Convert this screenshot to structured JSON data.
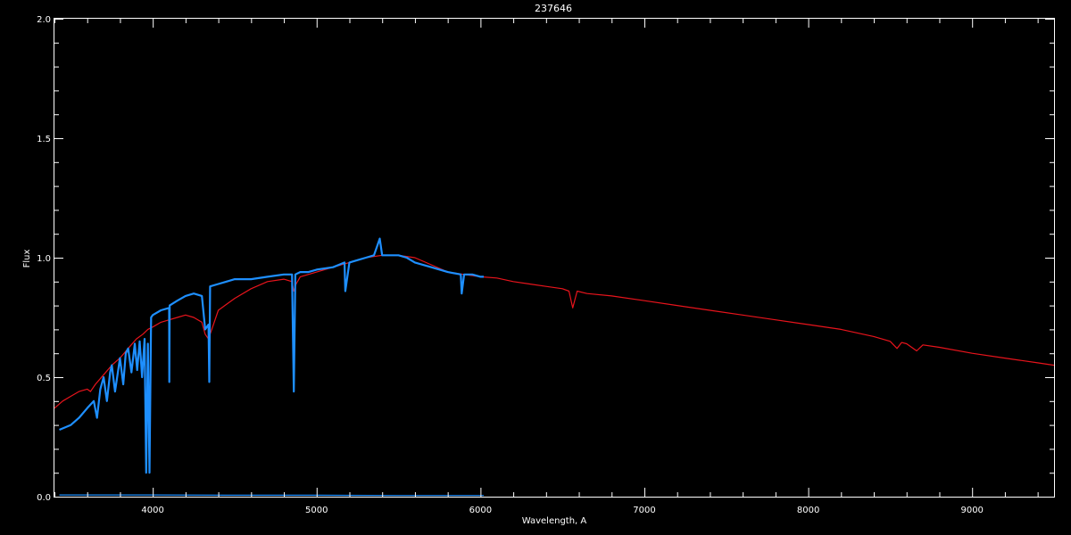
{
  "chart_data": {
    "type": "line",
    "title": "237646",
    "xlabel": "Wavelength, A",
    "ylabel": "Flux",
    "xlim": [
      3400,
      9500
    ],
    "ylim": [
      0.0,
      2.0
    ],
    "x_major_ticks": [
      4000,
      5000,
      6000,
      7000,
      8000,
      9000
    ],
    "x_minor_step": 200,
    "y_major_ticks": [
      0.0,
      0.5,
      1.0,
      1.5,
      2.0
    ],
    "y_tick_labels": [
      "0.0",
      "0.5",
      "1.0",
      "1.5",
      "2.0"
    ],
    "y_minor_step": 0.1,
    "grid": false,
    "background": "#000000",
    "axis_color": "#ffffff",
    "series": [
      {
        "color": "#e8141c",
        "x": [
          3400,
          3450,
          3500,
          3550,
          3600,
          3620,
          3650,
          3700,
          3750,
          3800,
          3850,
          3900,
          3940,
          3970,
          4000,
          4050,
          4100,
          4150,
          4200,
          4250,
          4300,
          4320,
          4340,
          4360,
          4400,
          4500,
          4600,
          4700,
          4800,
          4850,
          4861,
          4875,
          4900,
          5000,
          5100,
          5200,
          5300,
          5400,
          5500,
          5600,
          5700,
          5800,
          5900,
          6000,
          6100,
          6200,
          6300,
          6400,
          6500,
          6540,
          6563,
          6590,
          6650,
          6800,
          7000,
          7200,
          7400,
          7600,
          7800,
          8000,
          8200,
          8400,
          8500,
          8542,
          8570,
          8600,
          8662,
          8700,
          8800,
          9000,
          9200,
          9400,
          9500
        ],
        "y": [
          0.37,
          0.4,
          0.42,
          0.44,
          0.45,
          0.44,
          0.47,
          0.51,
          0.55,
          0.58,
          0.62,
          0.66,
          0.68,
          0.7,
          0.71,
          0.73,
          0.74,
          0.75,
          0.76,
          0.75,
          0.73,
          0.68,
          0.66,
          0.7,
          0.78,
          0.83,
          0.87,
          0.9,
          0.91,
          0.9,
          0.86,
          0.89,
          0.92,
          0.94,
          0.96,
          0.98,
          1.0,
          1.01,
          1.01,
          1.0,
          0.97,
          0.94,
          0.93,
          0.92,
          0.915,
          0.9,
          0.89,
          0.88,
          0.87,
          0.86,
          0.79,
          0.86,
          0.85,
          0.84,
          0.82,
          0.8,
          0.78,
          0.76,
          0.74,
          0.72,
          0.7,
          0.67,
          0.65,
          0.62,
          0.645,
          0.64,
          0.61,
          0.635,
          0.625,
          0.6,
          0.58,
          0.56,
          0.55
        ]
      },
      {
        "color": "#1e8fff",
        "x": [
          3430,
          3500,
          3550,
          3600,
          3640,
          3660,
          3680,
          3700,
          3720,
          3740,
          3750,
          3770,
          3800,
          3820,
          3835,
          3850,
          3870,
          3890,
          3905,
          3920,
          3935,
          3950,
          3960,
          3970,
          3980,
          3990,
          4000,
          4050,
          4100,
          4101,
          4103,
          4150,
          4200,
          4250,
          4300,
          4320,
          4340,
          4345,
          4350,
          4400,
          4450,
          4500,
          4600,
          4700,
          4800,
          4850,
          4861,
          4870,
          4900,
          4950,
          5000,
          5100,
          5170,
          5175,
          5200,
          5250,
          5300,
          5350,
          5385,
          5400,
          5450,
          5500,
          5550,
          5600,
          5700,
          5800,
          5880,
          5885,
          5900,
          5950,
          6000,
          6020
        ],
        "y": [
          0.28,
          0.3,
          0.33,
          0.37,
          0.4,
          0.33,
          0.45,
          0.5,
          0.4,
          0.52,
          0.55,
          0.44,
          0.58,
          0.47,
          0.6,
          0.62,
          0.52,
          0.64,
          0.53,
          0.65,
          0.5,
          0.66,
          0.1,
          0.64,
          0.1,
          0.75,
          0.76,
          0.78,
          0.79,
          0.48,
          0.8,
          0.82,
          0.84,
          0.85,
          0.84,
          0.7,
          0.72,
          0.48,
          0.88,
          0.89,
          0.9,
          0.91,
          0.91,
          0.92,
          0.93,
          0.93,
          0.44,
          0.93,
          0.94,
          0.94,
          0.95,
          0.96,
          0.98,
          0.86,
          0.98,
          0.99,
          1.0,
          1.01,
          1.08,
          1.01,
          1.01,
          1.01,
          1.0,
          0.98,
          0.96,
          0.94,
          0.93,
          0.85,
          0.93,
          0.93,
          0.92,
          0.92
        ]
      },
      {
        "color": "#1e8fff",
        "x": [
          3430,
          4000,
          4500,
          5000,
          5500,
          6020
        ],
        "y": [
          0.007,
          0.007,
          0.006,
          0.006,
          0.005,
          0.005
        ]
      }
    ]
  }
}
